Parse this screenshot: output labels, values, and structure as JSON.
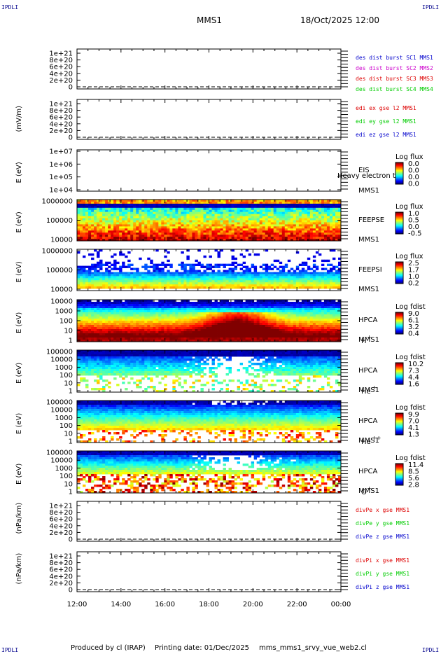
{
  "header": {
    "corner_tl": "IPDLI",
    "corner_tr": "IPDLI",
    "corner_bl": "IPDLI",
    "corner_br": "IPDLI",
    "mission": "MMS1",
    "datetime": "18/Oct/2025 12:00"
  },
  "footer": {
    "produced": "Produced by cl (IRAP)",
    "printed": "Printing date: 01/Dec/2025",
    "script": "mms_mms1_srvy_vue_web2.cl"
  },
  "colors": {
    "red": "#dd0000",
    "magenta": "#cc00cc",
    "green": "#00cc00",
    "blue": "#0000cc",
    "black": "#000000"
  },
  "chart_data": {
    "type": "heatmap",
    "x_ticks": [
      "12:00",
      "14:00",
      "16:00",
      "18:00",
      "20:00",
      "22:00",
      "00:00"
    ],
    "x_hours": [
      0,
      12
    ],
    "panels": [
      {
        "kind": "line",
        "ylabel": "",
        "yticks": [
          "1e+21",
          "8e+20",
          "6e+20",
          "4e+20",
          "2e+20",
          "0"
        ],
        "legend": [
          {
            "text": "des dist burst SC1 MMS1",
            "color": "blue"
          },
          {
            "text": "des dist burst SC2 MMS2",
            "color": "magenta"
          },
          {
            "text": "des dist burst SC3 MMS3",
            "color": "red"
          },
          {
            "text": "des dist burst SC4 MMS4",
            "color": "green"
          }
        ]
      },
      {
        "kind": "line",
        "ylabel": "(mV/m)",
        "yticks": [
          "1e+21",
          "8e+20",
          "6e+20",
          "4e+20",
          "2e+20",
          "0"
        ],
        "legend": [
          {
            "text": "edi ex gse l2 MMS1",
            "color": "red"
          },
          {
            "text": "edi ey gse l2 MMS1",
            "color": "green"
          },
          {
            "text": "edi ez gse l2 MMS1",
            "color": "blue"
          }
        ]
      },
      {
        "kind": "empty",
        "ylabel": "E (eV)",
        "yticks": [
          "1e+07",
          "1e+06",
          "1e+05",
          "1e+04"
        ],
        "labels": [
          "EIS",
          "MMS1"
        ],
        "overlay": "Heavy electron to",
        "cbar_title": "Log flux",
        "cbar": [
          "0.0",
          "0.0",
          "0.0",
          "0.0"
        ],
        "dmin": 5.5,
        "dmax": 5.5
      },
      {
        "kind": "spec",
        "ylabel": "E (eV)",
        "yticks": [
          "1000000",
          "100000",
          "10000"
        ],
        "labels": [
          "FEEPSE",
          "MMS1"
        ],
        "cbar_title": "Log flux",
        "cbar": [
          "1.0",
          "0.5",
          "0.0",
          "-0.5"
        ],
        "dmin": 5.35,
        "dmax": 5.9
      },
      {
        "kind": "spec",
        "ylabel": "E (eV)",
        "yticks": [
          "1000000",
          "100000",
          "10000"
        ],
        "labels": [
          "FEEPSI",
          "MMS1"
        ],
        "cbar_title": "Log flux",
        "cbar": [
          "2.5",
          "1.7",
          "1.0",
          "0.2"
        ],
        "dmin": 4.75,
        "dmax": 5.5
      },
      {
        "kind": "spec",
        "ylabel": "E (eV)",
        "yticks": [
          "10000",
          "1000",
          "100",
          "10",
          "1"
        ],
        "labels": [
          "HPCA",
          "MMS1",
          "H+"
        ],
        "cbar_title": "Log fdist",
        "cbar": [
          "9.0",
          "6.1",
          "3.2",
          "0.4"
        ],
        "dmin": 0,
        "dmax": 4.5
      },
      {
        "kind": "spec",
        "ylabel": "E (eV)",
        "yticks": [
          "100000",
          "10000",
          "1000",
          "100",
          "10",
          "1"
        ],
        "labels": [
          "HPCA",
          "MMS1",
          "He+"
        ],
        "cbar_title": "Log fdist",
        "cbar": [
          "10.2",
          "7.3",
          "4.4",
          "1.6"
        ],
        "dmin": 0.5,
        "dmax": 4.3
      },
      {
        "kind": "spec",
        "ylabel": "E (eV)",
        "yticks": [
          "100000",
          "10000",
          "1000",
          "100",
          "10",
          "1"
        ],
        "labels": [
          "HPCA",
          "MMS1",
          "He++"
        ],
        "cbar_title": "Log fdist",
        "cbar": [
          "9.9",
          "7.0",
          "4.1",
          "1.3"
        ],
        "dmin": 0.5,
        "dmax": 4.6
      },
      {
        "kind": "spec",
        "ylabel": "E (eV)",
        "yticks": [
          "100000",
          "10000",
          "1000",
          "100",
          "10",
          "1"
        ],
        "labels": [
          "HPCA",
          "MMS1",
          "O+"
        ],
        "cbar_title": "Log fdist",
        "cbar": [
          "11.4",
          "8.5",
          "5.6",
          "2.8"
        ],
        "dmin": 0.5,
        "dmax": 4.4
      },
      {
        "kind": "line",
        "ylabel": "(nPa/km)",
        "yticks": [
          "1e+21",
          "8e+20",
          "6e+20",
          "4e+20",
          "2e+20",
          "0"
        ],
        "legend": [
          {
            "text": "divPe x gse MMS1",
            "color": "red"
          },
          {
            "text": "divPe y gse MMS1",
            "color": "green"
          },
          {
            "text": "divPe z gse MMS1",
            "color": "blue"
          }
        ]
      },
      {
        "kind": "line",
        "ylabel": "(nPa/km)",
        "yticks": [
          "1e+21",
          "8e+20",
          "6e+20",
          "4e+20",
          "2e+20",
          "0"
        ],
        "legend": [
          {
            "text": "divPi x gse MMS1",
            "color": "red"
          },
          {
            "text": "divPi y gse MMS1",
            "color": "green"
          },
          {
            "text": "divPi z gse MMS1",
            "color": "blue"
          }
        ]
      }
    ]
  }
}
